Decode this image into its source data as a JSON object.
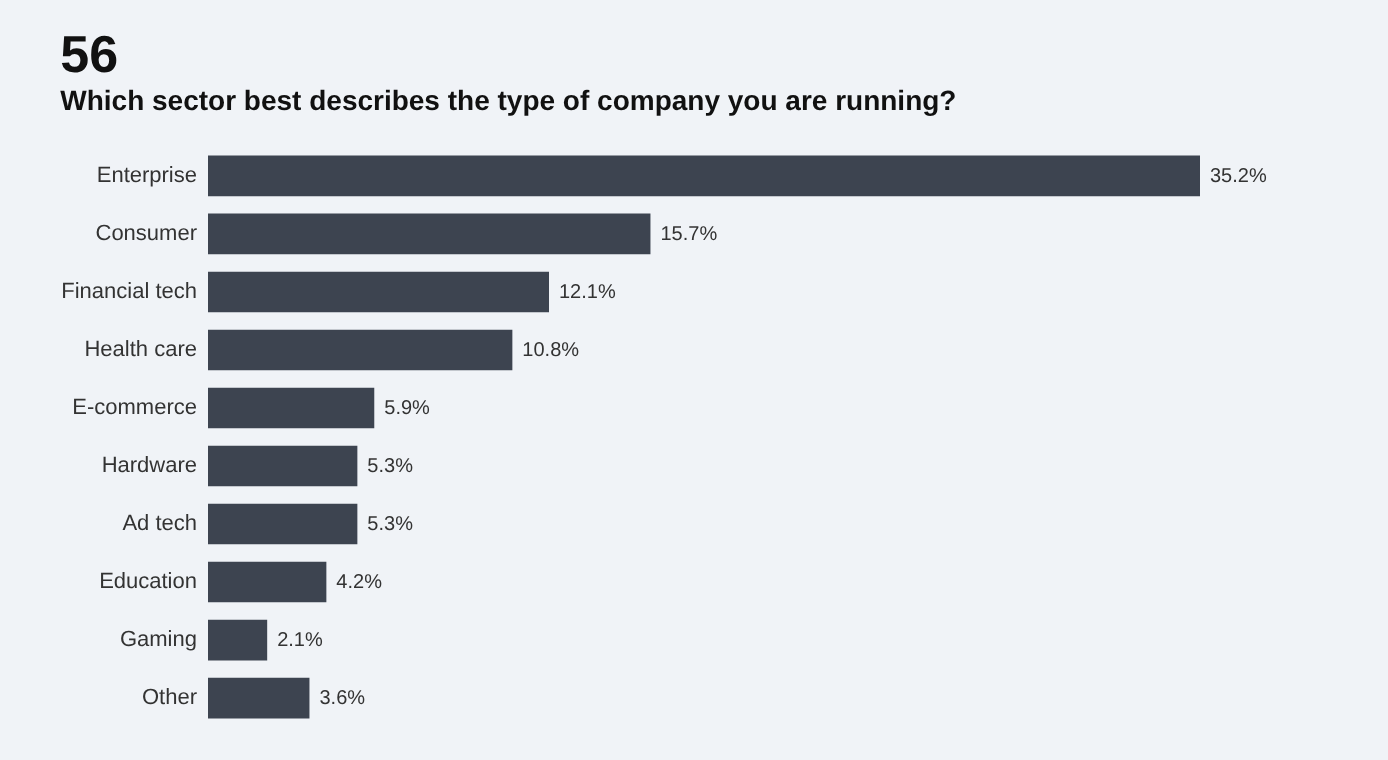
{
  "chart_data": {
    "type": "bar",
    "orientation": "horizontal",
    "title": "56",
    "subtitle": "Which sector best describes the type of company you are running?",
    "categories": [
      "Enterprise",
      "Consumer",
      "Financial tech",
      "Health care",
      "E-commerce",
      "Hardware",
      "Ad tech",
      "Education",
      "Gaming",
      "Other"
    ],
    "values": [
      35.2,
      15.7,
      12.1,
      10.8,
      5.9,
      5.3,
      5.3,
      4.2,
      2.1,
      3.6
    ],
    "value_labels": [
      "35.2%",
      "15.7%",
      "12.1%",
      "10.8%",
      "5.9%",
      "5.3%",
      "5.3%",
      "4.2%",
      "2.1%",
      "3.6%"
    ],
    "color": "#3d4450",
    "grid": false
  }
}
